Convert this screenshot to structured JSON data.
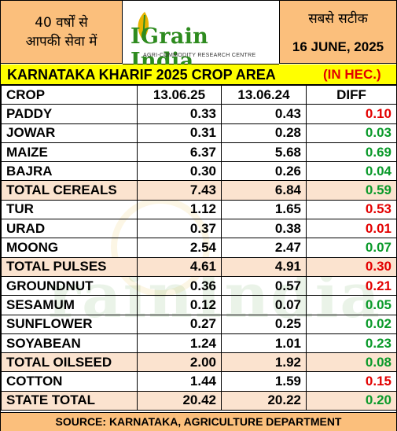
{
  "header": {
    "left_line1": "40 वर्षों से",
    "left_line2": "आपकी सेवा में",
    "logo_name": "IGrain India",
    "logo_tagline": "AGRI-COMMODITY RESEARCH CENTRE",
    "right_line1": "सबसे सटीक",
    "date": "16 JUNE, 2025",
    "logo_colors": {
      "text": "#2e8b1f",
      "leaf": "#e8b400"
    }
  },
  "title": {
    "text": "KARNATAKA KHARIF 2025 CROP AREA",
    "unit": "(IN HEC.)"
  },
  "table": {
    "columns": [
      "CROP",
      "13.06.25",
      "13.06.24",
      "DIFF"
    ],
    "rows": [
      {
        "crop": "PADDY",
        "v2025": "0.33",
        "v2024": "0.43",
        "diff": "0.10",
        "sign": "neg",
        "total": false
      },
      {
        "crop": "JOWAR",
        "v2025": "0.31",
        "v2024": "0.28",
        "diff": "0.03",
        "sign": "pos",
        "total": false
      },
      {
        "crop": "MAIZE",
        "v2025": "6.37",
        "v2024": "5.68",
        "diff": "0.69",
        "sign": "pos",
        "total": false
      },
      {
        "crop": "BAJRA",
        "v2025": "0.30",
        "v2024": "0.26",
        "diff": "0.04",
        "sign": "pos",
        "total": false
      },
      {
        "crop": "TOTAL CEREALS",
        "v2025": "7.43",
        "v2024": "6.84",
        "diff": "0.59",
        "sign": "pos",
        "total": true
      },
      {
        "crop": "TUR",
        "v2025": "1.12",
        "v2024": "1.65",
        "diff": "0.53",
        "sign": "neg",
        "total": false
      },
      {
        "crop": "URAD",
        "v2025": "0.37",
        "v2024": "0.38",
        "diff": "0.01",
        "sign": "neg",
        "total": false
      },
      {
        "crop": "MOONG",
        "v2025": "2.54",
        "v2024": "2.47",
        "diff": "0.07",
        "sign": "pos",
        "total": false
      },
      {
        "crop": "TOTAL PULSES",
        "v2025": "4.61",
        "v2024": "4.91",
        "diff": "0.30",
        "sign": "neg",
        "total": true
      },
      {
        "crop": "GROUNDNUT",
        "v2025": "0.36",
        "v2024": "0.57",
        "diff": "0.21",
        "sign": "neg",
        "total": false
      },
      {
        "crop": "SESAMUM",
        "v2025": "0.12",
        "v2024": "0.07",
        "diff": "0.05",
        "sign": "pos",
        "total": false
      },
      {
        "crop": "SUNFLOWER",
        "v2025": "0.27",
        "v2024": "0.25",
        "diff": "0.02",
        "sign": "pos",
        "total": false
      },
      {
        "crop": "SOYABEAN",
        "v2025": "1.24",
        "v2024": "1.01",
        "diff": "0.23",
        "sign": "pos",
        "total": false
      },
      {
        "crop": "TOTAL OILSEED",
        "v2025": "2.00",
        "v2024": "1.92",
        "diff": "0.08",
        "sign": "pos",
        "total": true
      },
      {
        "crop": "COTTON",
        "v2025": "1.44",
        "v2024": "1.59",
        "diff": "0.15",
        "sign": "neg",
        "total": false
      },
      {
        "crop": "STATE TOTAL",
        "v2025": "20.42",
        "v2024": "20.22",
        "diff": "0.20",
        "sign": "pos",
        "total": true
      }
    ]
  },
  "footer": {
    "source": "SOURCE: KARNATAKA, AGRICULTURE DEPARTMENT"
  },
  "colors": {
    "header_bg": "#fbbf7c",
    "title_bg": "#ffff00",
    "unit_red": "#e30000",
    "total_row_bg": "#fbe3cf",
    "diff_positive": "#0a9a2a",
    "diff_negative": "#e30000"
  },
  "watermark": "IGrain India"
}
